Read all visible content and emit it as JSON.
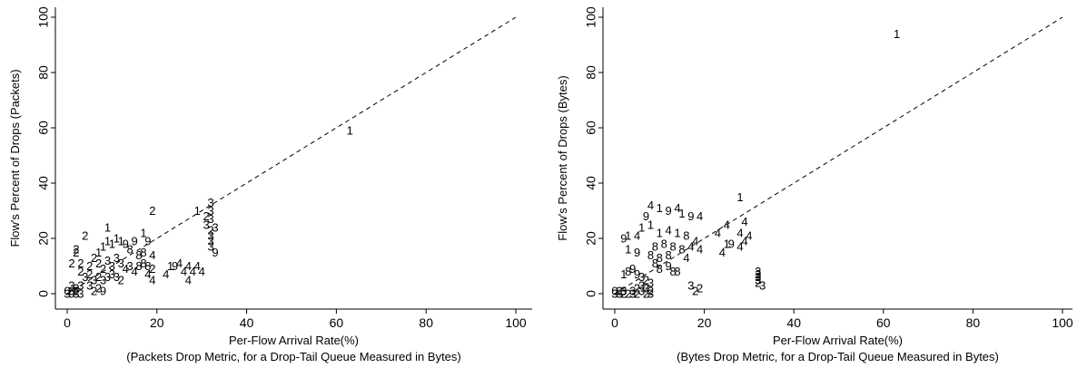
{
  "chart_data": [
    {
      "type": "scatter",
      "marker": "text-digits",
      "xlabel": "Per-Flow Arrival Rate(%)",
      "subtitle": "(Packets Drop Metric, for a Drop-Tail Queue Measured in Bytes)",
      "ylabel": "Flow's Percent of Drops (Packets)",
      "xlim": [
        0,
        100
      ],
      "ylim": [
        0,
        100
      ],
      "xticks": [
        "0",
        "20",
        "40",
        "60",
        "80",
        "100"
      ],
      "yticks": [
        "0",
        "20",
        "40",
        "60",
        "80",
        "100"
      ],
      "reference_line": "y = x",
      "points": [
        {
          "x": 63,
          "y": 59,
          "label": "1"
        },
        {
          "x": 19,
          "y": 30,
          "label": "2"
        },
        {
          "x": 29,
          "y": 30,
          "label": "1"
        },
        {
          "x": 32,
          "y": 33,
          "label": "3"
        },
        {
          "x": 32,
          "y": 30,
          "label": "3"
        },
        {
          "x": 32,
          "y": 27,
          "label": "3"
        },
        {
          "x": 31,
          "y": 25,
          "label": "3"
        },
        {
          "x": 32,
          "y": 23,
          "label": "2"
        },
        {
          "x": 32,
          "y": 21,
          "label": "3"
        },
        {
          "x": 33,
          "y": 24,
          "label": "3"
        },
        {
          "x": 32,
          "y": 19,
          "label": "3"
        },
        {
          "x": 32,
          "y": 17,
          "label": "3"
        },
        {
          "x": 33,
          "y": 15,
          "label": "9"
        },
        {
          "x": 31,
          "y": 28,
          "label": "2"
        },
        {
          "x": 4,
          "y": 21,
          "label": "2"
        },
        {
          "x": 9,
          "y": 24,
          "label": "1"
        },
        {
          "x": 17,
          "y": 22,
          "label": "1"
        },
        {
          "x": 18,
          "y": 19,
          "label": "9"
        },
        {
          "x": 2,
          "y": 15,
          "label": "2"
        },
        {
          "x": 2,
          "y": 16,
          "label": "2"
        },
        {
          "x": 1,
          "y": 11,
          "label": "2"
        },
        {
          "x": 3,
          "y": 11,
          "label": "2"
        },
        {
          "x": 5,
          "y": 10,
          "label": "2"
        },
        {
          "x": 6,
          "y": 13,
          "label": "2"
        },
        {
          "x": 7,
          "y": 15,
          "label": "1"
        },
        {
          "x": 8,
          "y": 17,
          "label": "1"
        },
        {
          "x": 9,
          "y": 19,
          "label": "1"
        },
        {
          "x": 10,
          "y": 18,
          "label": "1"
        },
        {
          "x": 11,
          "y": 20,
          "label": "1"
        },
        {
          "x": 12,
          "y": 19,
          "label": "1"
        },
        {
          "x": 13,
          "y": 18,
          "label": "9"
        },
        {
          "x": 14,
          "y": 16,
          "label": "8"
        },
        {
          "x": 15,
          "y": 19,
          "label": "9"
        },
        {
          "x": 16,
          "y": 14,
          "label": "8"
        },
        {
          "x": 17,
          "y": 15,
          "label": "8"
        },
        {
          "x": 19,
          "y": 14,
          "label": "4"
        },
        {
          "x": 7,
          "y": 11,
          "label": "2"
        },
        {
          "x": 8,
          "y": 9,
          "label": "2"
        },
        {
          "x": 9,
          "y": 12,
          "label": "3"
        },
        {
          "x": 10,
          "y": 10,
          "label": "3"
        },
        {
          "x": 11,
          "y": 13,
          "label": "3"
        },
        {
          "x": 12,
          "y": 11,
          "label": "3"
        },
        {
          "x": 13,
          "y": 9,
          "label": "4"
        },
        {
          "x": 14,
          "y": 10,
          "label": "3"
        },
        {
          "x": 15,
          "y": 8,
          "label": "4"
        },
        {
          "x": 16,
          "y": 10,
          "label": "8"
        },
        {
          "x": 17,
          "y": 11,
          "label": "8"
        },
        {
          "x": 18,
          "y": 10,
          "label": "8"
        },
        {
          "x": 19,
          "y": 9,
          "label": "2"
        },
        {
          "x": 18,
          "y": 7,
          "label": "4"
        },
        {
          "x": 19,
          "y": 5,
          "label": "4"
        },
        {
          "x": 22,
          "y": 7,
          "label": "4"
        },
        {
          "x": 23,
          "y": 10,
          "label": "1"
        },
        {
          "x": 24,
          "y": 10,
          "label": "9"
        },
        {
          "x": 25,
          "y": 11,
          "label": "4"
        },
        {
          "x": 26,
          "y": 8,
          "label": "4"
        },
        {
          "x": 27,
          "y": 10,
          "label": "4"
        },
        {
          "x": 28,
          "y": 8,
          "label": "4"
        },
        {
          "x": 29,
          "y": 10,
          "label": "4"
        },
        {
          "x": 30,
          "y": 8,
          "label": "4"
        },
        {
          "x": 27,
          "y": 5,
          "label": "4"
        },
        {
          "x": 3,
          "y": 8,
          "label": "2"
        },
        {
          "x": 4,
          "y": 6,
          "label": "3"
        },
        {
          "x": 5,
          "y": 7,
          "label": "2"
        },
        {
          "x": 6,
          "y": 5,
          "label": "3"
        },
        {
          "x": 7,
          "y": 6,
          "label": "2"
        },
        {
          "x": 8,
          "y": 5,
          "label": "3"
        },
        {
          "x": 9,
          "y": 6,
          "label": "3"
        },
        {
          "x": 10,
          "y": 7,
          "label": "3"
        },
        {
          "x": 11,
          "y": 6,
          "label": "3"
        },
        {
          "x": 12,
          "y": 5,
          "label": "2"
        },
        {
          "x": 1,
          "y": 3,
          "label": "3"
        },
        {
          "x": 2,
          "y": 2,
          "label": "2"
        },
        {
          "x": 3,
          "y": 3,
          "label": "3"
        },
        {
          "x": 5,
          "y": 3,
          "label": "3"
        },
        {
          "x": 7,
          "y": 2,
          "label": "2"
        },
        {
          "x": 8,
          "y": 1,
          "label": "9"
        },
        {
          "x": 6,
          "y": 1,
          "label": "2"
        },
        {
          "x": 0,
          "y": 0,
          "label": "3"
        },
        {
          "x": 1,
          "y": 0,
          "label": "9"
        },
        {
          "x": 2,
          "y": 0,
          "label": "3"
        },
        {
          "x": 0,
          "y": 1,
          "label": "0"
        },
        {
          "x": 1,
          "y": 1,
          "label": "3"
        },
        {
          "x": 2,
          "y": 1,
          "label": "2"
        },
        {
          "x": 3,
          "y": 0,
          "label": "3"
        }
      ]
    },
    {
      "type": "scatter",
      "marker": "text-digits",
      "xlabel": "Per-Flow Arrival Rate(%)",
      "subtitle": "(Bytes Drop Metric, for a Drop-Tail Queue Measured in Bytes)",
      "ylabel": "Flow's Percent of Drops (Bytes)",
      "xlim": [
        0,
        100
      ],
      "ylim": [
        0,
        100
      ],
      "xticks": [
        "0",
        "20",
        "40",
        "60",
        "80",
        "100"
      ],
      "yticks": [
        "0",
        "20",
        "40",
        "60",
        "80",
        "100"
      ],
      "reference_line": "y = x",
      "points": [
        {
          "x": 63,
          "y": 94,
          "label": "1"
        },
        {
          "x": 28,
          "y": 35,
          "label": "1"
        },
        {
          "x": 29,
          "y": 26,
          "label": "4"
        },
        {
          "x": 25,
          "y": 25,
          "label": "4"
        },
        {
          "x": 23,
          "y": 22,
          "label": "4"
        },
        {
          "x": 28,
          "y": 22,
          "label": "4"
        },
        {
          "x": 30,
          "y": 21,
          "label": "4"
        },
        {
          "x": 29,
          "y": 19,
          "label": "4"
        },
        {
          "x": 26,
          "y": 18,
          "label": "9"
        },
        {
          "x": 28,
          "y": 17,
          "label": "4"
        },
        {
          "x": 24,
          "y": 15,
          "label": "4"
        },
        {
          "x": 25,
          "y": 18,
          "label": "1"
        },
        {
          "x": 8,
          "y": 32,
          "label": "4"
        },
        {
          "x": 10,
          "y": 31,
          "label": "1"
        },
        {
          "x": 12,
          "y": 30,
          "label": "9"
        },
        {
          "x": 14,
          "y": 31,
          "label": "4"
        },
        {
          "x": 15,
          "y": 29,
          "label": "1"
        },
        {
          "x": 17,
          "y": 28,
          "label": "9"
        },
        {
          "x": 19,
          "y": 28,
          "label": "4"
        },
        {
          "x": 7,
          "y": 28,
          "label": "9"
        },
        {
          "x": 8,
          "y": 25,
          "label": "1"
        },
        {
          "x": 6,
          "y": 24,
          "label": "1"
        },
        {
          "x": 3,
          "y": 21,
          "label": "1"
        },
        {
          "x": 2,
          "y": 20,
          "label": "9"
        },
        {
          "x": 5,
          "y": 21,
          "label": "4"
        },
        {
          "x": 10,
          "y": 22,
          "label": "1"
        },
        {
          "x": 12,
          "y": 23,
          "label": "4"
        },
        {
          "x": 14,
          "y": 22,
          "label": "1"
        },
        {
          "x": 16,
          "y": 21,
          "label": "8"
        },
        {
          "x": 18,
          "y": 19,
          "label": "4"
        },
        {
          "x": 17,
          "y": 17,
          "label": "4"
        },
        {
          "x": 19,
          "y": 16,
          "label": "4"
        },
        {
          "x": 11,
          "y": 18,
          "label": "8"
        },
        {
          "x": 13,
          "y": 17,
          "label": "8"
        },
        {
          "x": 15,
          "y": 16,
          "label": "8"
        },
        {
          "x": 16,
          "y": 13,
          "label": "4"
        },
        {
          "x": 3,
          "y": 16,
          "label": "1"
        },
        {
          "x": 5,
          "y": 15,
          "label": "9"
        },
        {
          "x": 8,
          "y": 14,
          "label": "8"
        },
        {
          "x": 9,
          "y": 17,
          "label": "8"
        },
        {
          "x": 10,
          "y": 13,
          "label": "8"
        },
        {
          "x": 12,
          "y": 14,
          "label": "8"
        },
        {
          "x": 9,
          "y": 11,
          "label": "8"
        },
        {
          "x": 10,
          "y": 9,
          "label": "8"
        },
        {
          "x": 12,
          "y": 10,
          "label": "9"
        },
        {
          "x": 13,
          "y": 8,
          "label": "8"
        },
        {
          "x": 14,
          "y": 8,
          "label": "8"
        },
        {
          "x": 2,
          "y": 7,
          "label": "1"
        },
        {
          "x": 3,
          "y": 8,
          "label": "8"
        },
        {
          "x": 4,
          "y": 9,
          "label": "9"
        },
        {
          "x": 5,
          "y": 7,
          "label": "9"
        },
        {
          "x": 6,
          "y": 6,
          "label": "3"
        },
        {
          "x": 7,
          "y": 5,
          "label": "2"
        },
        {
          "x": 8,
          "y": 4,
          "label": "3"
        },
        {
          "x": 6,
          "y": 3,
          "label": "3"
        },
        {
          "x": 7,
          "y": 2,
          "label": "3"
        },
        {
          "x": 5,
          "y": 2,
          "label": "2"
        },
        {
          "x": 8,
          "y": 1,
          "label": "2"
        },
        {
          "x": 4,
          "y": 1,
          "label": "3"
        },
        {
          "x": 17,
          "y": 3,
          "label": "3"
        },
        {
          "x": 19,
          "y": 2,
          "label": "2"
        },
        {
          "x": 18,
          "y": 1,
          "label": "2"
        },
        {
          "x": 32,
          "y": 8,
          "label": "3"
        },
        {
          "x": 32,
          "y": 7,
          "label": "3"
        },
        {
          "x": 32,
          "y": 6,
          "label": "3"
        },
        {
          "x": 32,
          "y": 5,
          "label": "3"
        },
        {
          "x": 32,
          "y": 4,
          "label": "2"
        },
        {
          "x": 33,
          "y": 3,
          "label": "3"
        },
        {
          "x": 0,
          "y": 0,
          "label": "3"
        },
        {
          "x": 1,
          "y": 1,
          "label": "2"
        },
        {
          "x": 1,
          "y": 0,
          "label": "3"
        },
        {
          "x": 2,
          "y": 0,
          "label": "2"
        },
        {
          "x": 2,
          "y": 1,
          "label": "3"
        },
        {
          "x": 3,
          "y": 0,
          "label": "2"
        },
        {
          "x": 4,
          "y": 0,
          "label": "3"
        },
        {
          "x": 5,
          "y": 0,
          "label": "2"
        },
        {
          "x": 6,
          "y": 1,
          "label": "3"
        },
        {
          "x": 7,
          "y": 0,
          "label": "2"
        },
        {
          "x": 8,
          "y": 0,
          "label": "3"
        },
        {
          "x": 0,
          "y": 1,
          "label": "0"
        }
      ]
    }
  ]
}
